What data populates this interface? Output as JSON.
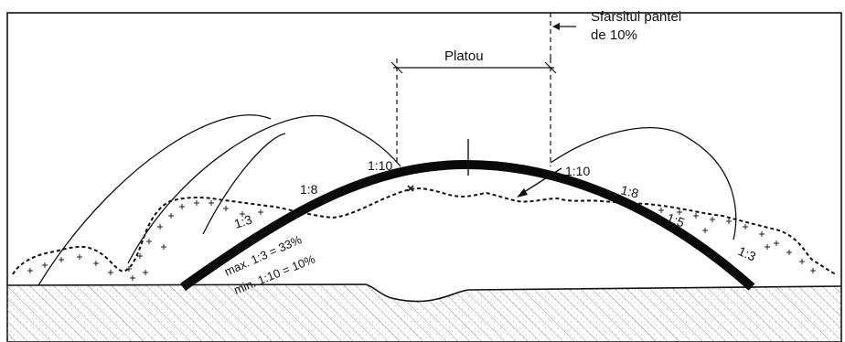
{
  "labels": {
    "end_of_slope": [
      "Sfarsitul pantei",
      "de 10%"
    ],
    "plateau": "Platou",
    "left_ratios": [
      "1:10",
      "1:8",
      "1:3"
    ],
    "right_ratios": [
      "1:10",
      "1:8",
      "1:5",
      "1:3"
    ],
    "slope_max": "max. 1:3 = 33%",
    "slope_min": "min. 1:10 = 10%"
  },
  "colors": {
    "line": "#111111",
    "ground_hatch": "#8a8a8a",
    "background": "#ffffff"
  }
}
